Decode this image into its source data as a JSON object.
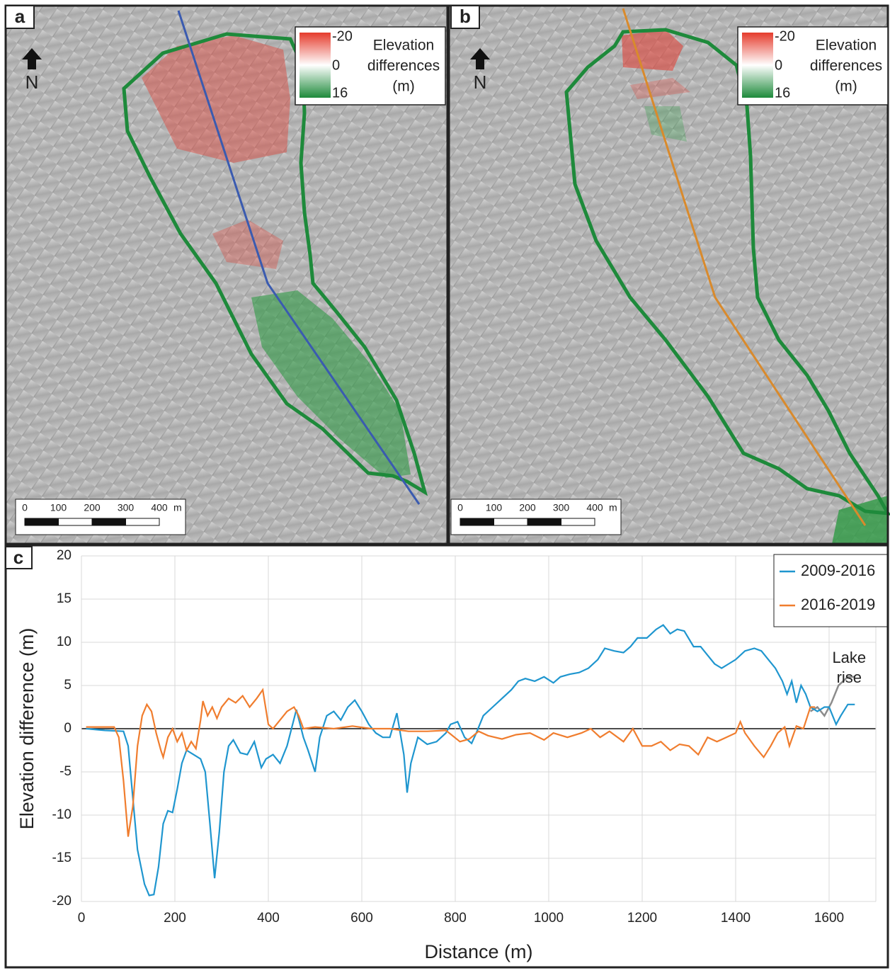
{
  "panels": [
    {
      "label": "a",
      "north": "N",
      "legend": {
        "ticks": [
          -20,
          0,
          16
        ],
        "title": [
          "Elevation",
          "differences",
          "(m)"
        ]
      },
      "scale": {
        "ticks": [
          0,
          100,
          200,
          300,
          400
        ],
        "unit": "m"
      }
    },
    {
      "label": "b",
      "north": "N",
      "legend": {
        "ticks": [
          -20,
          0,
          16
        ],
        "title": [
          "Elevation",
          "differences",
          "(m)"
        ]
      },
      "scale": {
        "ticks": [
          0,
          100,
          200,
          300,
          400
        ],
        "unit": "m"
      }
    }
  ],
  "chart_data": {
    "type": "line",
    "label": "c",
    "xlabel": "Distance (m)",
    "ylabel": "Elevation difference (m)",
    "xlim": [
      0,
      1700
    ],
    "xticks": [
      0,
      200,
      400,
      600,
      800,
      1000,
      1200,
      1400,
      1600
    ],
    "ylim": [
      -20,
      20
    ],
    "yticks": [
      -20,
      -15,
      -10,
      -5,
      0,
      5,
      10,
      15,
      20
    ],
    "grid": true,
    "legend": "upper right",
    "series": [
      {
        "name": "2009-2016",
        "color": "#1f96cf",
        "x": [
          10,
          50,
          90,
          100,
          110,
          120,
          135,
          145,
          155,
          165,
          175,
          185,
          195,
          205,
          215,
          225,
          240,
          255,
          265,
          275,
          285,
          295,
          305,
          315,
          325,
          340,
          355,
          370,
          385,
          395,
          410,
          425,
          440,
          460,
          475,
          485,
          500,
          510,
          525,
          540,
          555,
          570,
          585,
          600,
          615,
          630,
          645,
          660,
          675,
          690,
          697,
          705,
          720,
          740,
          760,
          780,
          790,
          805,
          820,
          835,
          845,
          860,
          880,
          900,
          920,
          935,
          950,
          970,
          990,
          1010,
          1025,
          1045,
          1065,
          1085,
          1105,
          1120,
          1140,
          1160,
          1175,
          1190,
          1210,
          1230,
          1245,
          1260,
          1275,
          1290,
          1310,
          1325,
          1340,
          1355,
          1370,
          1385,
          1400,
          1420,
          1440,
          1455,
          1470,
          1485,
          1500,
          1510,
          1520,
          1530,
          1540,
          1550,
          1560,
          1575,
          1590,
          1600,
          1615,
          1625,
          1640,
          1655
        ],
        "values": [
          0,
          -0.2,
          -0.3,
          -2,
          -8,
          -14,
          -18,
          -19.3,
          -19.2,
          -16,
          -11,
          -9.5,
          -9.7,
          -7,
          -4,
          -2.5,
          -3,
          -3.5,
          -5,
          -11,
          -17.3,
          -12,
          -5,
          -2,
          -1.3,
          -2.8,
          -3,
          -1.5,
          -4.5,
          -3.5,
          -3,
          -4,
          -2,
          2.2,
          -1,
          -2.5,
          -5,
          -1,
          1.5,
          2,
          1,
          2.5,
          3.3,
          2,
          0.5,
          -0.5,
          -1,
          -1,
          1.8,
          -3,
          -7.4,
          -4,
          -1,
          -1.8,
          -1.5,
          -0.5,
          0.5,
          0.8,
          -1,
          -1.7,
          -0.5,
          1.5,
          2.5,
          3.5,
          4.5,
          5.5,
          5.8,
          5.5,
          6,
          5.3,
          6,
          6.3,
          6.5,
          7,
          8,
          9.3,
          9,
          8.8,
          9.5,
          10.5,
          10.5,
          11.5,
          12,
          11,
          11.5,
          11.3,
          9.5,
          9.5,
          8.5,
          7.5,
          7,
          7.5,
          8,
          9,
          9.3,
          9,
          8,
          7,
          5.5,
          4,
          5.5,
          3,
          5,
          4,
          2.5,
          2,
          2.5,
          2.5,
          0.5,
          1.5,
          2.8,
          2.8
        ]
      },
      {
        "name": "2016-2019",
        "color": "#f07d2e",
        "x": [
          10,
          70,
          80,
          90,
          100,
          110,
          120,
          130,
          140,
          150,
          160,
          170,
          175,
          185,
          195,
          205,
          215,
          225,
          235,
          245,
          255,
          260,
          270,
          280,
          290,
          300,
          315,
          330,
          345,
          360,
          375,
          388,
          400,
          410,
          425,
          440,
          455,
          465,
          475,
          500,
          540,
          580,
          620,
          660,
          700,
          740,
          780,
          810,
          830,
          850,
          870,
          900,
          930,
          960,
          990,
          1010,
          1040,
          1070,
          1090,
          1110,
          1130,
          1160,
          1180,
          1200,
          1220,
          1240,
          1260,
          1280,
          1300,
          1320,
          1340,
          1360,
          1380,
          1400,
          1410,
          1420,
          1440,
          1460,
          1475,
          1490,
          1505,
          1515,
          1530,
          1545,
          1560,
          1570
        ],
        "values": [
          0.2,
          0.2,
          -1,
          -6,
          -12.5,
          -9,
          -2,
          1.5,
          2.8,
          2,
          -0.5,
          -2.5,
          -3.3,
          -1,
          0,
          -1.5,
          -0.5,
          -2.5,
          -1.5,
          -2.3,
          1,
          3.2,
          1.5,
          2.5,
          1.2,
          2.5,
          3.5,
          3,
          3.8,
          2.5,
          3.5,
          4.5,
          0.5,
          0,
          1,
          2,
          2.5,
          1.5,
          0,
          0.2,
          0,
          0.3,
          0,
          0,
          -0.3,
          -0.3,
          -0.2,
          -1.5,
          -1.2,
          -0.3,
          -0.8,
          -1.2,
          -0.7,
          -0.5,
          -1.3,
          -0.5,
          -1,
          -0.5,
          0,
          -1,
          -0.3,
          -1.5,
          0,
          -2,
          -2,
          -1.5,
          -2.5,
          -1.8,
          -2,
          -3,
          -1,
          -1.5,
          -1,
          -0.5,
          0.8,
          -0.5,
          -2,
          -3.3,
          -2,
          -0.5,
          0.2,
          -2,
          0.3,
          0,
          2.5,
          2.5
        ]
      }
    ],
    "annotation": {
      "text": [
        "Lake",
        "rise"
      ],
      "color": "#8c8c8c",
      "x": [
        1560,
        1575,
        1590,
        1605,
        1620,
        1630,
        1640,
        1655
      ],
      "values": [
        2,
        2.5,
        1.5,
        3,
        5,
        5.5,
        6,
        6
      ]
    }
  }
}
